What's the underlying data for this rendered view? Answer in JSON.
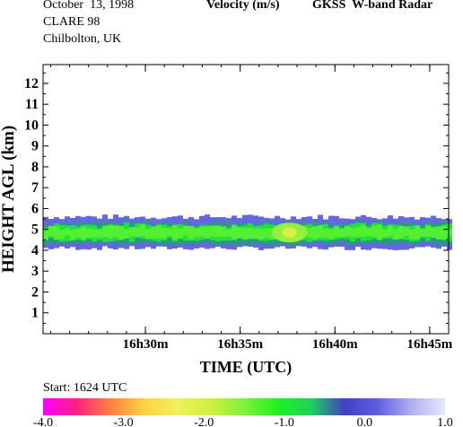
{
  "header": {
    "date": "October  13, 1998",
    "campaign": "CLARE 98",
    "location": "Chilbolton, UK",
    "quantity": "Velocity (m/s)",
    "instrument": "GKSS  W-band Radar"
  },
  "start_label": "Start: 1624 UTC",
  "chart_data": {
    "type": "heatmap",
    "title": "Velocity (m/s)",
    "xlabel": "TIME (UTC)",
    "ylabel": "HEIGHT AGL (km)",
    "x_ticks": [
      "16h30m",
      "16h35m",
      "16h40m",
      "16h45m"
    ],
    "x_tick_minutes": [
      30,
      35,
      40,
      45
    ],
    "xlim_minutes": [
      24.6,
      46.0
    ],
    "ylim": [
      0,
      12.9
    ],
    "y_ticks": [
      1,
      2,
      3,
      4,
      5,
      6,
      7,
      8,
      9,
      10,
      11,
      12
    ],
    "colorbar": {
      "min": -4.0,
      "max": 1.0,
      "tick_values": [
        -4.0,
        -3.0,
        -2.0,
        -1.0,
        0.0,
        1.0
      ],
      "tick_labels": [
        "-4.0",
        "-3.0",
        "-2.0",
        "-1.0",
        "0.0",
        "1.0"
      ],
      "colors": [
        "#ff00ff",
        "#ff2080",
        "#ff8040",
        "#ffd040",
        "#f0f060",
        "#d0f040",
        "#80f040",
        "#20f020",
        "#20d060",
        "#4040c0",
        "#6060e0",
        "#b0b0f0",
        "#e8e8ff"
      ]
    },
    "cloud_layer": {
      "base_km": 4.1,
      "top_km": 5.6,
      "layers": [
        {
          "name": "",
          "velocity": 0.2,
          "base_km": 4.1,
          "top_km": 5.6
        },
        {
          "name": "",
          "velocity": -0.5,
          "base_km": 4.3,
          "top_km": 5.3
        },
        {
          "name": "",
          "velocity": -0.9,
          "base_km": 4.5,
          "top_km": 5.2
        },
        {
          "name": "",
          "velocity": -1.3,
          "base_km": 4.6,
          "top_km": 5.1
        }
      ]
    },
    "grid": false
  }
}
